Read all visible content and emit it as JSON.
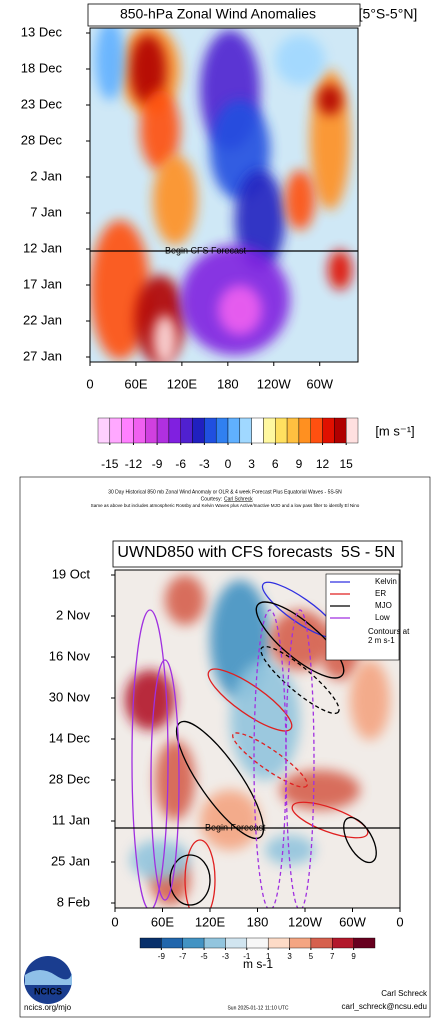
{
  "chart_data": [
    {
      "type": "heatmap",
      "title": "850-hPa Zonal Wind Anomalies",
      "subtitle": "[5°S-5°N]",
      "y_categories": [
        "13 Dec",
        "18 Dec",
        "23 Dec",
        "28 Dec",
        "2 Jan",
        "7 Jan",
        "12 Jan",
        "17 Jan",
        "22 Jan",
        "27 Jan"
      ],
      "xlim": [
        0,
        350
      ],
      "xticks": [
        0,
        {
          "value": 60,
          "label": "60E"
        },
        {
          "value": 120,
          "label": "120E"
        },
        180,
        {
          "value": 240,
          "label": "120W"
        },
        {
          "value": 300,
          "label": "60W"
        }
      ],
      "annotation": "Begin CFS Forecast",
      "forecast_start": "12 Jan",
      "colorbar_lim": [
        -16.5,
        16.5
      ],
      "colorbar_ticks": [
        -15,
        -12,
        -9,
        -6,
        -3,
        0,
        3,
        6,
        9,
        12,
        15
      ],
      "colorbar_colors": [
        "#ffd0ff",
        "#ffa8ff",
        "#ff80ff",
        "#f060f0",
        "#d040e0",
        "#b030e0",
        "#8020e0",
        "#5020d0",
        "#2020c0",
        "#2050e0",
        "#3080f0",
        "#60b0ff",
        "#a0d8ff",
        "#ffffff",
        "#fff8a0",
        "#ffe060",
        "#ffc040",
        "#ff9020",
        "#ff5010",
        "#e01000",
        "#b00000",
        "#ffe0e0"
      ],
      "colorbar_units": "[m s⁻¹]"
    },
    {
      "type": "heatmap",
      "header": [
        "30 Day Historical 850 mb Zonal Wind Anomaly or OLR & 4 week Forecast Plus Equatorial Waves - 5S-5N",
        "Same as above but includes atmospheric Rossby and Kelvin Waves plus Active/Inactive MJO and a low pass filter to identify El Nino"
      ],
      "courtesy": "Courtesy:",
      "courtesy_link": "Carl Schreck",
      "title": "UWND850 with CFS forecasts",
      "subtitle": "5S - 5N",
      "y_categories": [
        "19 Oct",
        "2 Nov",
        "16 Nov",
        "30 Nov",
        "14 Dec",
        "28 Dec",
        "11 Jan",
        "25 Jan",
        "8 Feb"
      ],
      "xlim": [
        0,
        360
      ],
      "xticks": [
        0,
        {
          "value": 60,
          "label": "60E"
        },
        {
          "value": 120,
          "label": "120E"
        },
        180,
        {
          "value": 240,
          "label": "120W"
        },
        {
          "value": 300,
          "label": "60W"
        },
        {
          "value": 360,
          "label": "0"
        }
      ],
      "annotation": "Begin Forecast",
      "forecast_start": "11 Jan",
      "series": [
        {
          "name": "Kelvin",
          "color": "#3030e0"
        },
        {
          "name": "ER",
          "color": "#e02020"
        },
        {
          "name": "MJO",
          "color": "#000000"
        },
        {
          "name": "Low",
          "color": "#a030e0"
        }
      ],
      "legend_note": [
        "Contours at",
        "2 m s-1"
      ],
      "colorbar_lim": [
        -11,
        11
      ],
      "colorbar_ticks": [
        -9,
        -7,
        -5,
        -3,
        -1,
        1,
        3,
        5,
        7,
        9
      ],
      "colorbar_colors": [
        "#08306b",
        "#2166ac",
        "#4393c3",
        "#92c5de",
        "#d1e5f0",
        "#f7f7f7",
        "#fddbc7",
        "#f4a582",
        "#d6604d",
        "#b2182b",
        "#67001f"
      ],
      "colorbar_units": "m s-1",
      "logo": "NCICS",
      "footer_left": "ncics.org/mjo",
      "footer_center": "Sun 2025-01-12 11:10 UTC",
      "footer_name": "Carl Schreck",
      "footer_email": "carl_schreck@ncsu.edu"
    }
  ]
}
